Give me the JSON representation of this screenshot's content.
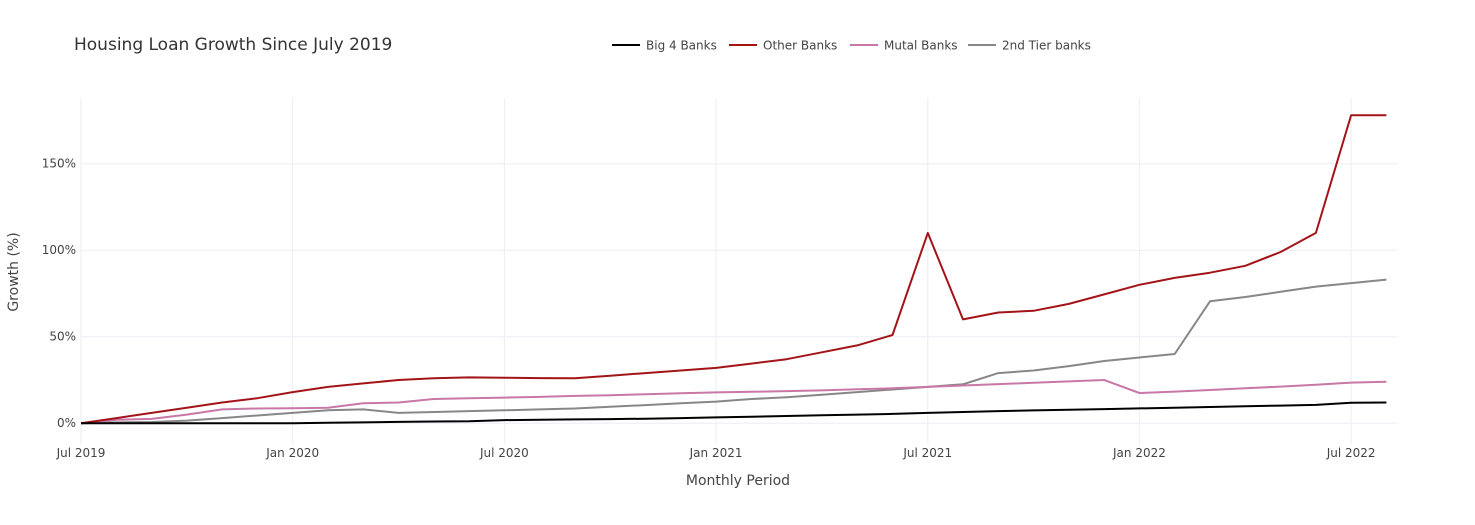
{
  "chart_data": {
    "type": "line",
    "title": "Housing Loan Growth Since July 2019",
    "xlabel": "Monthly Period",
    "ylabel": "Growth (%)",
    "ylim": [
      -12,
      188
    ],
    "grid": true,
    "legend_position": "top",
    "x_ticks": [
      "Jul 2019",
      "Jan 2020",
      "Jul 2020",
      "Jan 2021",
      "Jul 2021",
      "Jan 2022",
      "Jul 2022"
    ],
    "y_ticks": [
      "0%",
      "50%",
      "100%",
      "150%"
    ],
    "y_tick_values": [
      0,
      50,
      100,
      150
    ],
    "x": [
      "2019-07",
      "2019-08",
      "2019-09",
      "2019-10",
      "2019-11",
      "2019-12",
      "2020-01",
      "2020-02",
      "2020-03",
      "2020-04",
      "2020-05",
      "2020-06",
      "2020-07",
      "2020-08",
      "2020-09",
      "2020-10",
      "2020-11",
      "2020-12",
      "2021-01",
      "2021-02",
      "2021-03",
      "2021-04",
      "2021-05",
      "2021-06",
      "2021-07",
      "2021-08",
      "2021-09",
      "2021-10",
      "2021-11",
      "2021-12",
      "2022-01",
      "2022-02",
      "2022-03",
      "2022-04",
      "2022-05",
      "2022-06",
      "2022-07",
      "2022-08"
    ],
    "series": [
      {
        "name": "Big 4 Banks",
        "color": "#000000",
        "values": [
          0,
          0,
          0,
          0,
          0,
          0,
          0,
          0.3,
          0.5,
          0.8,
          1,
          1.2,
          1.8,
          2,
          2.2,
          2.4,
          2.6,
          3,
          3.4,
          3.8,
          4.2,
          4.6,
          5,
          5.4,
          6,
          6.5,
          7,
          7.4,
          7.8,
          8.2,
          8.6,
          9,
          9.4,
          9.8,
          10.2,
          10.6,
          11.8,
          12
        ]
      },
      {
        "name": "Other Banks",
        "color": "#a31419",
        "values": [
          0,
          3,
          6,
          9,
          12,
          14.5,
          18,
          21,
          23,
          25,
          26,
          26.5,
          26.3,
          26.1,
          26,
          27.5,
          29,
          30.5,
          32,
          34.5,
          37,
          41,
          45,
          51,
          110,
          60,
          64,
          65,
          69,
          74.5,
          80,
          84,
          87,
          91,
          99,
          110,
          178,
          178
        ]
      },
      {
        "name": "Mutal Banks",
        "color": "#c977a7",
        "values": [
          0,
          2,
          2.5,
          5,
          8,
          8.5,
          8.7,
          9,
          11.5,
          12,
          14,
          14.5,
          14.8,
          15.2,
          15.8,
          16.2,
          16.8,
          17.3,
          17.8,
          18.2,
          18.6,
          19,
          19.6,
          20.2,
          21,
          21.8,
          22.6,
          23.4,
          24.2,
          25,
          17.5,
          18.3,
          19.2,
          20.2,
          21.2,
          22.2,
          23.5,
          24
        ]
      },
      {
        "name": "2nd Tier banks",
        "color": "#878787",
        "values": [
          0,
          0.5,
          0.7,
          1.5,
          3,
          4.5,
          6,
          7.5,
          8,
          6,
          6.5,
          7,
          7.5,
          8,
          8.5,
          9.5,
          10.5,
          11.5,
          12.5,
          14,
          15,
          16.5,
          18,
          19.5,
          21,
          22.5,
          29,
          30.5,
          33,
          36,
          38,
          40,
          70.5,
          73,
          76,
          79,
          81,
          83
        ]
      }
    ]
  }
}
